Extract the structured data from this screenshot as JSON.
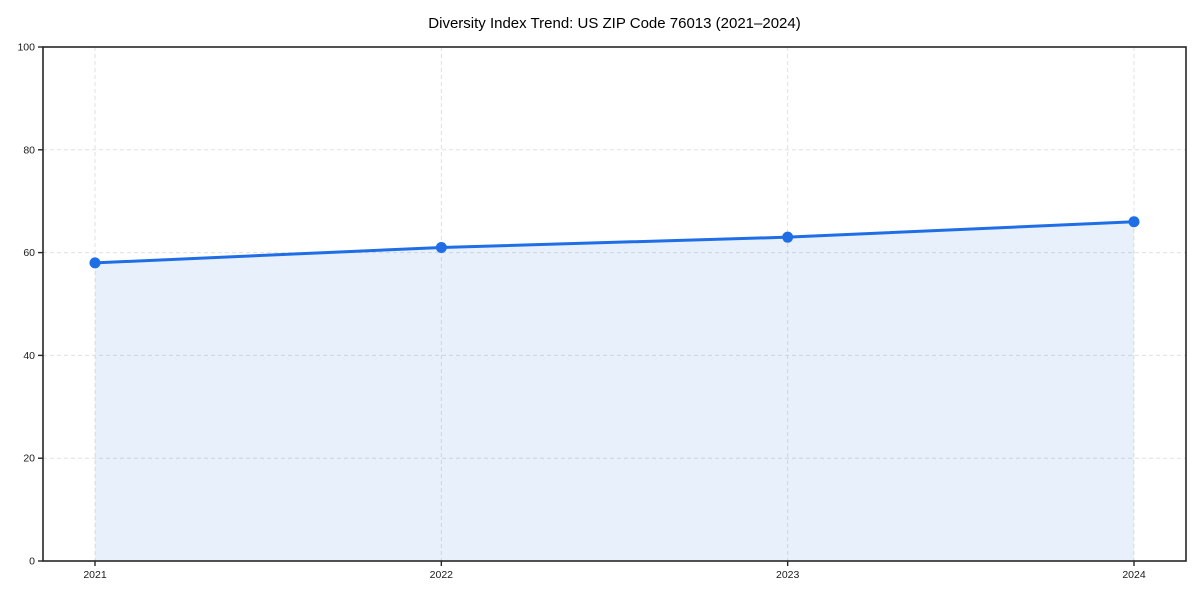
{
  "title": "Diversity Index Trend: US ZIP Code 76013 (2021–2024)",
  "chart_data": {
    "type": "area",
    "title": "Diversity Index Trend: US ZIP Code 76013 (2021–2024)",
    "categories": [
      "2021",
      "2022",
      "2023",
      "2024"
    ],
    "values": [
      58,
      61,
      63,
      66
    ],
    "xlabel": "",
    "ylabel": "",
    "ylim": [
      0,
      100
    ],
    "yticks": [
      0,
      20,
      40,
      60,
      80,
      100
    ],
    "grid": true,
    "grid_style": "dashed",
    "legend": "none",
    "colors": {
      "line": "#1f6ee6",
      "marker": "#1f6ee6",
      "fill": "rgba(31,110,230,0.10)",
      "grid": "#e0e0e0",
      "axis": "#262626",
      "tick_label": "#1a1a1a",
      "background": "#ffffff"
    }
  }
}
